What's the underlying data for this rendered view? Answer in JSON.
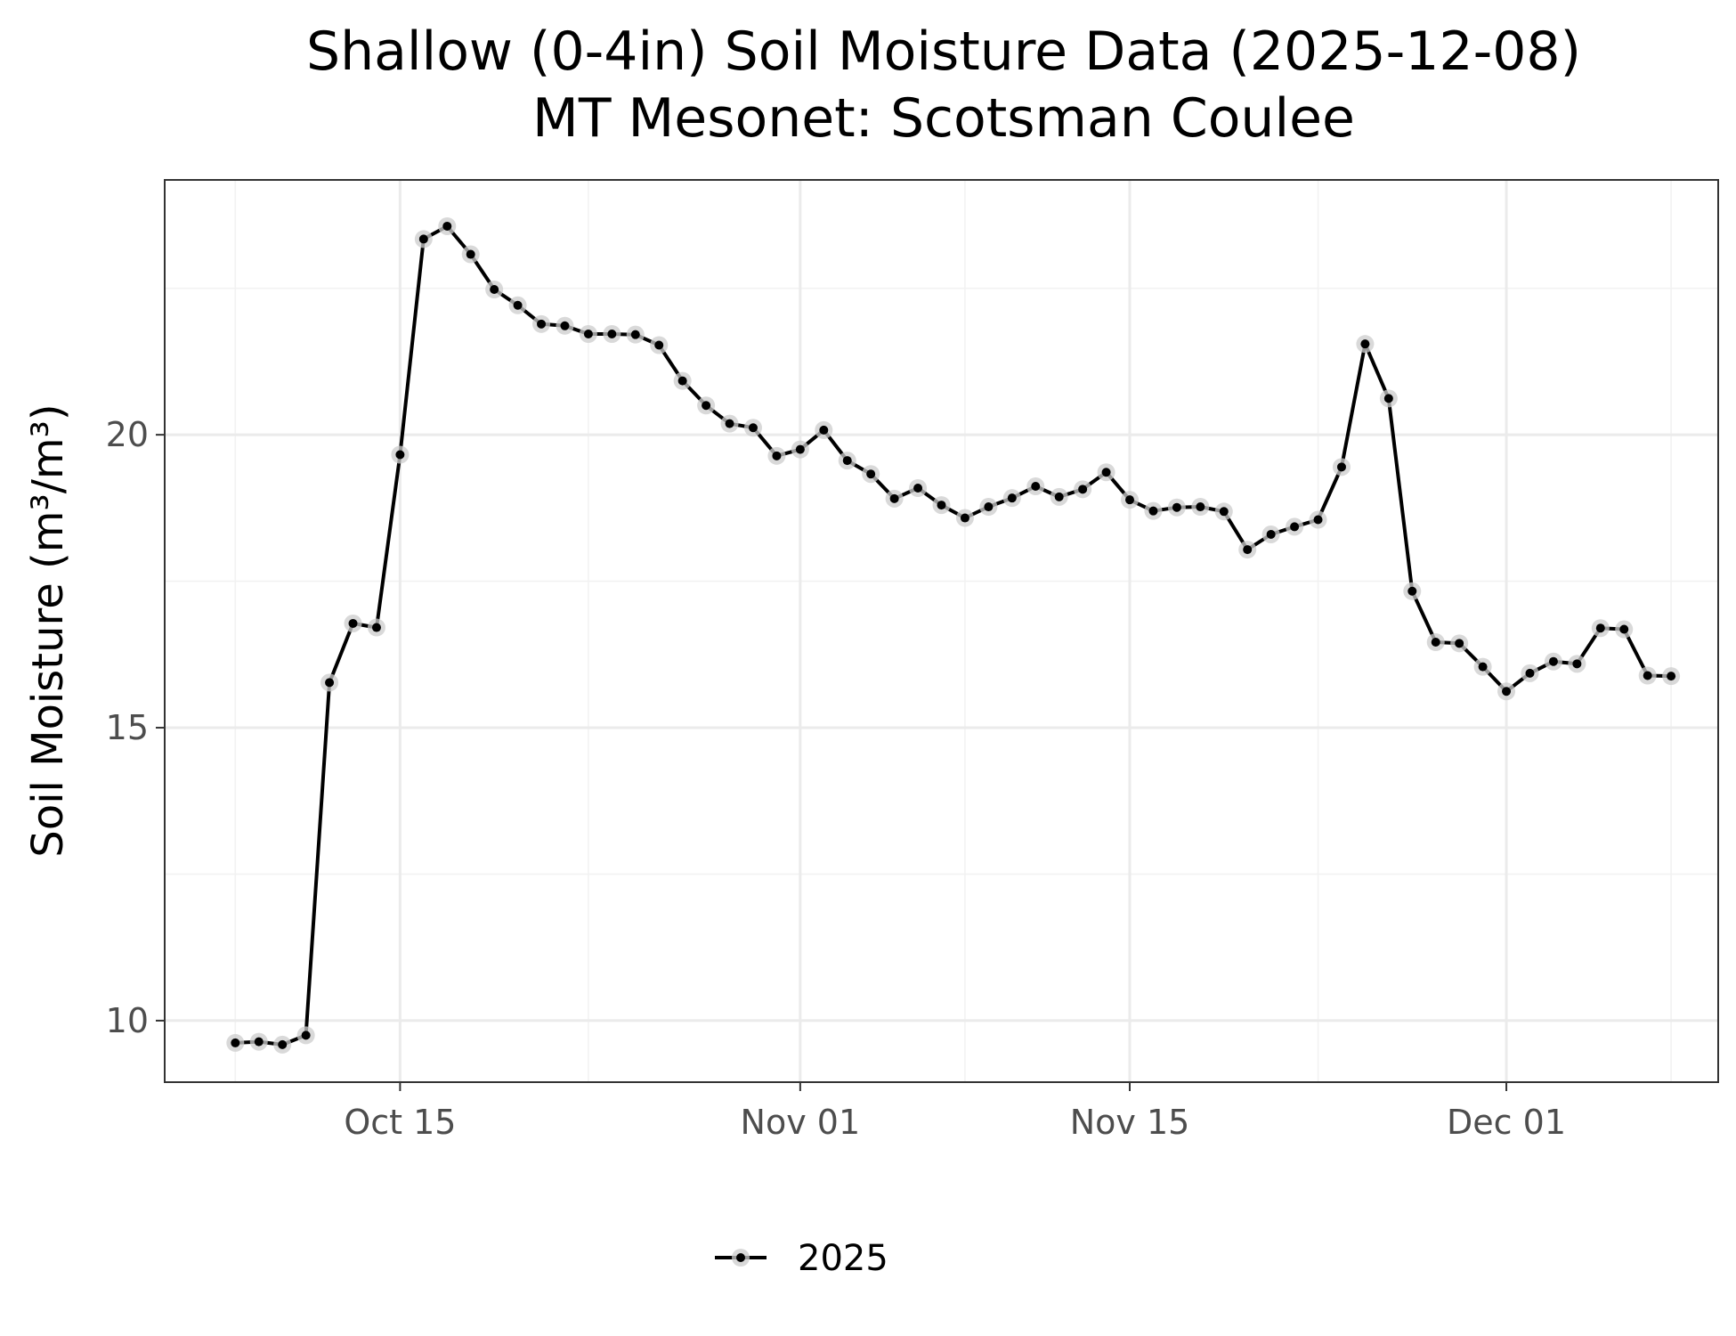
{
  "chart_data": {
    "type": "line",
    "title": "Shallow (0-4in) Soil Moisture Data (2025-12-08)",
    "subtitle": "MT Mesonet: Scotsman Coulee",
    "xlabel": "",
    "ylabel": "Soil Moisture (m³/m³)",
    "x_ticks": [
      {
        "date": "2025-10-15",
        "label": "Oct 15"
      },
      {
        "date": "2025-11-01",
        "label": "Nov 01"
      },
      {
        "date": "2025-11-15",
        "label": "Nov 15"
      },
      {
        "date": "2025-12-01",
        "label": "Dec 01"
      }
    ],
    "x_minor_breaks": [
      "2025-10-08",
      "2025-10-23",
      "2025-11-08",
      "2025-11-23",
      "2025-12-08"
    ],
    "y_ticks": [
      10,
      15,
      20
    ],
    "y_minor_breaks": [
      12.5,
      17.5,
      22.5
    ],
    "xlim": [
      "2025-10-05",
      "2025-12-10"
    ],
    "ylim": [
      8.95,
      24.35
    ],
    "grid": true,
    "legend_position": "bottom",
    "line_color": "#000000",
    "point_halo_color": "#cccccc",
    "series": [
      {
        "name": "2025",
        "x": [
          "2025-10-08",
          "2025-10-09",
          "2025-10-10",
          "2025-10-11",
          "2025-10-12",
          "2025-10-13",
          "2025-10-14",
          "2025-10-15",
          "2025-10-16",
          "2025-10-17",
          "2025-10-18",
          "2025-10-19",
          "2025-10-20",
          "2025-10-21",
          "2025-10-22",
          "2025-10-23",
          "2025-10-24",
          "2025-10-25",
          "2025-10-26",
          "2025-10-27",
          "2025-10-28",
          "2025-10-29",
          "2025-10-30",
          "2025-10-31",
          "2025-11-01",
          "2025-11-02",
          "2025-11-03",
          "2025-11-04",
          "2025-11-05",
          "2025-11-06",
          "2025-11-07",
          "2025-11-08",
          "2025-11-09",
          "2025-11-10",
          "2025-11-11",
          "2025-11-12",
          "2025-11-13",
          "2025-11-14",
          "2025-11-15",
          "2025-11-16",
          "2025-11-17",
          "2025-11-18",
          "2025-11-19",
          "2025-11-20",
          "2025-11-21",
          "2025-11-22",
          "2025-11-23",
          "2025-11-24",
          "2025-11-25",
          "2025-11-26",
          "2025-11-27",
          "2025-11-28",
          "2025-11-29",
          "2025-11-30",
          "2025-12-01",
          "2025-12-02",
          "2025-12-03",
          "2025-12-04",
          "2025-12-05",
          "2025-12-06",
          "2025-12-07",
          "2025-12-08"
        ],
        "values": [
          9.62,
          9.64,
          9.59,
          9.75,
          15.77,
          16.78,
          16.71,
          19.66,
          23.34,
          23.56,
          23.08,
          22.48,
          22.21,
          21.89,
          21.86,
          21.72,
          21.72,
          21.71,
          21.53,
          20.92,
          20.5,
          20.19,
          20.12,
          19.64,
          19.75,
          20.08,
          19.56,
          19.33,
          18.91,
          19.09,
          18.8,
          18.58,
          18.77,
          18.92,
          19.12,
          18.94,
          19.07,
          19.36,
          18.89,
          18.7,
          18.76,
          18.77,
          18.69,
          18.04,
          18.3,
          18.43,
          18.55,
          19.45,
          21.55,
          20.62,
          17.33,
          16.46,
          16.44,
          16.04,
          15.62,
          15.93,
          16.13,
          16.09,
          16.7,
          16.68,
          15.89,
          15.88
        ]
      }
    ]
  },
  "legend": {
    "items": [
      {
        "label": "2025"
      }
    ]
  }
}
